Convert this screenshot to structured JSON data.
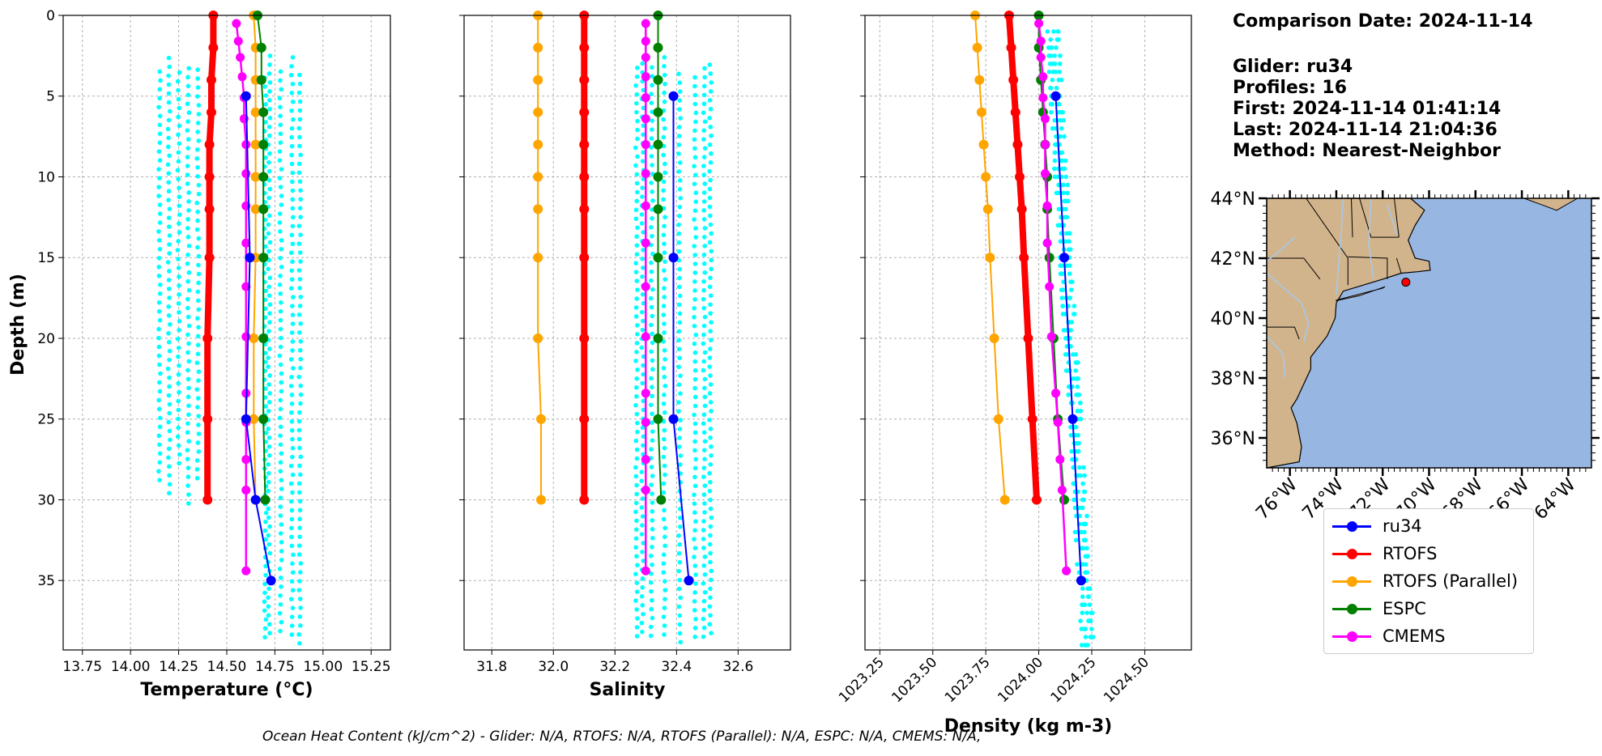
{
  "info": {
    "comparison_date": "Comparison Date: 2024-11-14",
    "glider": "Glider: ru34",
    "profiles": "Profiles: 16",
    "first": "First: 2024-11-14 01:41:14",
    "last": "Last: 2024-11-14 21:04:36",
    "method": "Method: Nearest-Neighbor"
  },
  "footer": "Ocean Heat Content (kJ/cm^2) - Glider: N/A,  RTOFS: N/A,  RTOFS (Parallel): N/A,  ESPC: N/A,  CMEMS: N/A,",
  "colors": {
    "ru34": "#0000ff",
    "RTOFS": "#ff0000",
    "RTOFS (Parallel)": "#ffa500",
    "ESPC": "#008000",
    "CMEMS": "#ff00ff",
    "glider_raw": "#00ffff",
    "land": "#d2b48c",
    "ocean": "#97b6e1",
    "rivers": "#a8c8e8"
  },
  "legend": [
    {
      "label": "ru34",
      "color": "#0000ff"
    },
    {
      "label": "RTOFS",
      "color": "#ff0000"
    },
    {
      "label": "RTOFS (Parallel)",
      "color": "#ffa500"
    },
    {
      "label": "ESPC",
      "color": "#008000"
    },
    {
      "label": "CMEMS",
      "color": "#ff00ff"
    }
  ],
  "chart_data": [
    {
      "type": "line",
      "xlabel": "Temperature (°C)",
      "ylabel": "Depth (m)",
      "xlim": [
        13.65,
        15.35
      ],
      "ylim": [
        39.3,
        0
      ],
      "xticks": [
        13.75,
        14.0,
        14.25,
        14.5,
        14.75,
        15.0,
        15.25
      ],
      "xtick_labels": [
        "13.75",
        "14.00",
        "14.25",
        "14.50",
        "14.75",
        "15.00",
        "15.25"
      ],
      "yticks": [
        0,
        5,
        10,
        15,
        20,
        25,
        30,
        35
      ],
      "grid": true,
      "raw_columns": [
        14.15,
        14.2,
        14.25,
        14.3,
        14.35,
        14.7,
        14.72,
        14.78,
        14.84,
        14.88
      ],
      "series": [
        {
          "name": "ru34",
          "x": [
            14.6,
            14.62,
            14.6,
            14.65,
            14.73
          ],
          "depth": [
            5,
            15,
            25,
            30,
            35
          ]
        },
        {
          "name": "RTOFS",
          "x": [
            14.43,
            14.43,
            14.42,
            14.42,
            14.41,
            14.41,
            14.41,
            14.41,
            14.4,
            14.4,
            14.4
          ],
          "depth": [
            0,
            2,
            4,
            6,
            8,
            10,
            12,
            15,
            20,
            25,
            30
          ]
        },
        {
          "name": "RTOFS (Parallel)",
          "x": [
            14.64,
            14.65,
            14.65,
            14.65,
            14.65,
            14.65,
            14.65,
            14.65,
            14.64,
            14.64,
            14.65
          ],
          "depth": [
            0,
            2,
            4,
            6,
            8,
            10,
            12,
            15,
            20,
            25,
            30
          ]
        },
        {
          "name": "ESPC",
          "x": [
            14.66,
            14.68,
            14.68,
            14.69,
            14.69,
            14.69,
            14.69,
            14.69,
            14.69,
            14.69,
            14.7
          ],
          "depth": [
            0,
            2,
            4,
            6,
            8,
            10,
            12,
            15,
            20,
            25,
            30
          ]
        },
        {
          "name": "CMEMS",
          "x": [
            14.55,
            14.56,
            14.57,
            14.58,
            14.59,
            14.59,
            14.6,
            14.6,
            14.6,
            14.6,
            14.6,
            14.6,
            14.6,
            14.6,
            14.6,
            14.6,
            14.6
          ],
          "depth": [
            0.5,
            1.6,
            2.6,
            3.8,
            5.1,
            6.4,
            8.0,
            9.8,
            11.8,
            14.1,
            16.8,
            19.9,
            23.4,
            25.2,
            27.5,
            29.4,
            34.4
          ]
        }
      ]
    },
    {
      "type": "line",
      "xlabel": "Salinity",
      "ylabel": "",
      "xlim": [
        31.71,
        32.77
      ],
      "ylim": [
        39.3,
        0
      ],
      "xticks": [
        31.8,
        32.0,
        32.2,
        32.4,
        32.6
      ],
      "xtick_labels": [
        "31.8",
        "32.0",
        "32.2",
        "32.4",
        "32.6"
      ],
      "yticks": [
        0,
        5,
        10,
        15,
        20,
        25,
        30,
        35
      ],
      "grid": true,
      "raw_columns": [
        32.27,
        32.29,
        32.32,
        32.36,
        32.41,
        32.46,
        32.49,
        32.51
      ],
      "series": [
        {
          "name": "ru34",
          "x": [
            32.39,
            32.39,
            32.39,
            32.44
          ],
          "depth": [
            5,
            15,
            25,
            35
          ]
        },
        {
          "name": "RTOFS",
          "x": [
            32.1,
            32.1,
            32.1,
            32.1,
            32.1,
            32.1,
            32.1,
            32.1,
            32.1,
            32.1,
            32.1
          ],
          "depth": [
            0,
            2,
            4,
            6,
            8,
            10,
            12,
            15,
            20,
            25,
            30
          ]
        },
        {
          "name": "RTOFS (Parallel)",
          "x": [
            31.95,
            31.95,
            31.95,
            31.95,
            31.95,
            31.95,
            31.95,
            31.95,
            31.95,
            31.96,
            31.96
          ],
          "depth": [
            0,
            2,
            4,
            6,
            8,
            10,
            12,
            15,
            20,
            25,
            30
          ]
        },
        {
          "name": "ESPC",
          "x": [
            32.34,
            32.34,
            32.34,
            32.34,
            32.34,
            32.34,
            32.34,
            32.34,
            32.34,
            32.34,
            32.35
          ],
          "depth": [
            0,
            2,
            4,
            6,
            8,
            10,
            12,
            15,
            20,
            25,
            30
          ]
        },
        {
          "name": "CMEMS",
          "x": [
            32.3,
            32.3,
            32.3,
            32.3,
            32.3,
            32.3,
            32.3,
            32.3,
            32.3,
            32.3,
            32.3,
            32.3,
            32.3,
            32.3,
            32.3,
            32.3,
            32.3
          ],
          "depth": [
            0.5,
            1.6,
            2.6,
            3.8,
            5.1,
            6.4,
            8.0,
            9.8,
            11.8,
            14.1,
            16.8,
            19.9,
            23.4,
            25.2,
            27.5,
            29.4,
            34.4
          ]
        }
      ]
    },
    {
      "type": "line",
      "xlabel": "Density (kg m-3)",
      "ylabel": "",
      "xlim": [
        1023.18,
        1024.72
      ],
      "ylim": [
        39.3,
        0
      ],
      "xticks": [
        1023.25,
        1023.5,
        1023.75,
        1024.0,
        1024.25,
        1024.5
      ],
      "xtick_labels": [
        "1023.25",
        "1023.50",
        "1023.75",
        "1024.00",
        "1024.25",
        "1024.50"
      ],
      "yticks": [
        0,
        5,
        10,
        15,
        20,
        25,
        30,
        35
      ],
      "grid": true,
      "series": [
        {
          "name": "ru34",
          "x": [
            1024.08,
            1024.12,
            1024.16,
            1024.2
          ],
          "depth": [
            5,
            15,
            25,
            35
          ]
        },
        {
          "name": "RTOFS",
          "x": [
            1023.86,
            1023.87,
            1023.88,
            1023.89,
            1023.9,
            1023.91,
            1023.92,
            1023.93,
            1023.95,
            1023.97,
            1023.99
          ],
          "depth": [
            0,
            2,
            4,
            6,
            8,
            10,
            12,
            15,
            20,
            25,
            30
          ]
        },
        {
          "name": "RTOFS (Parallel)",
          "x": [
            1023.7,
            1023.71,
            1023.72,
            1023.73,
            1023.74,
            1023.75,
            1023.76,
            1023.77,
            1023.79,
            1023.81,
            1023.84
          ],
          "depth": [
            0,
            2,
            4,
            6,
            8,
            10,
            12,
            15,
            20,
            25,
            30
          ]
        },
        {
          "name": "ESPC",
          "x": [
            1024.0,
            1024.0,
            1024.01,
            1024.02,
            1024.03,
            1024.04,
            1024.04,
            1024.05,
            1024.07,
            1024.09,
            1024.12
          ],
          "depth": [
            0,
            2,
            4,
            6,
            8,
            10,
            12,
            15,
            20,
            25,
            30
          ]
        },
        {
          "name": "CMEMS",
          "x": [
            1024.0,
            1024.01,
            1024.01,
            1024.02,
            1024.02,
            1024.03,
            1024.03,
            1024.03,
            1024.04,
            1024.04,
            1024.05,
            1024.06,
            1024.08,
            1024.09,
            1024.1,
            1024.11,
            1024.13
          ],
          "depth": [
            0.5,
            1.6,
            2.6,
            3.8,
            5.1,
            6.4,
            8.0,
            9.8,
            11.8,
            14.1,
            16.8,
            19.9,
            23.4,
            25.2,
            27.5,
            29.4,
            34.4
          ]
        }
      ]
    }
  ],
  "map": {
    "lon_range": [
      -77.0,
      -63.0
    ],
    "lat_range": [
      35.0,
      44.0
    ],
    "lat_labels": [
      "44°N",
      "42°N",
      "40°N",
      "38°N",
      "36°N"
    ],
    "lat_values": [
      44,
      42,
      40,
      38,
      36
    ],
    "lon_labels": [
      "76°W",
      "74°W",
      "72°W",
      "70°W",
      "68°W",
      "66°W",
      "64°W"
    ],
    "lon_values": [
      -76,
      -74,
      -72,
      -70,
      -68,
      -66,
      -64
    ],
    "glider_position": {
      "lon": -71.0,
      "lat": 41.2
    }
  }
}
